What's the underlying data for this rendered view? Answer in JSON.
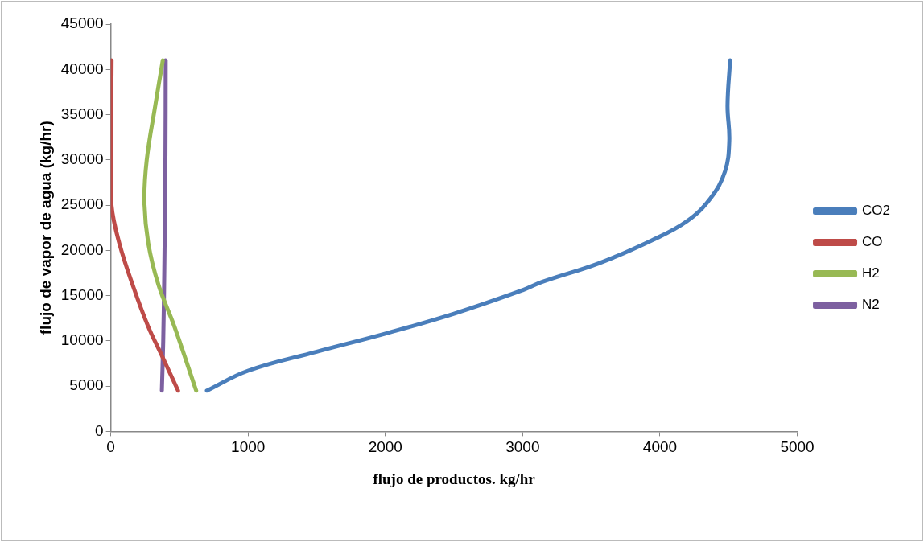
{
  "chart_data": {
    "type": "line",
    "xlabel": "flujo de productos. kg/hr",
    "ylabel": "flujo de vapor de agua (kg/hr)",
    "xlim": [
      0,
      5000
    ],
    "xticks": [
      0,
      1000,
      2000,
      3000,
      4000,
      5000
    ],
    "ylim": [
      0,
      45000
    ],
    "yticks": [
      0,
      5000,
      10000,
      15000,
      20000,
      25000,
      30000,
      35000,
      40000,
      45000
    ],
    "grid": false,
    "legend": "right",
    "marker": "none",
    "line_style": "solid",
    "series": [
      {
        "name": "CO2",
        "color": "#4a7ebb",
        "x": [
          700,
          1000,
          1500,
          2000,
          2500,
          3000,
          3140,
          3560,
          3940,
          4195,
          4365,
          4473,
          4505,
          4492,
          4511
        ],
        "values": [
          4500,
          6700,
          8800,
          10800,
          13000,
          15600,
          16500,
          18600,
          21100,
          23200,
          25700,
          28700,
          32100,
          36000,
          41000
        ]
      },
      {
        "name": "CO",
        "color": "#be4b48",
        "x": [
          490,
          368,
          272,
          166,
          62,
          5,
          4,
          4,
          6
        ],
        "values": [
          4500,
          8500,
          11600,
          15900,
          20800,
          25000,
          30000,
          35000,
          41000
        ]
      },
      {
        "name": "H2",
        "color": "#98b954",
        "x": [
          622,
          463,
          347,
          273,
          245,
          262,
          324,
          379
        ],
        "values": [
          4500,
          11600,
          16200,
          20800,
          25400,
          30000,
          36000,
          41000
        ]
      },
      {
        "name": "N2",
        "color": "#7d60a0",
        "x": [
          372,
          382,
          390,
          398,
          400
        ],
        "values": [
          4500,
          10000,
          18000,
          30000,
          41000
        ]
      }
    ]
  }
}
